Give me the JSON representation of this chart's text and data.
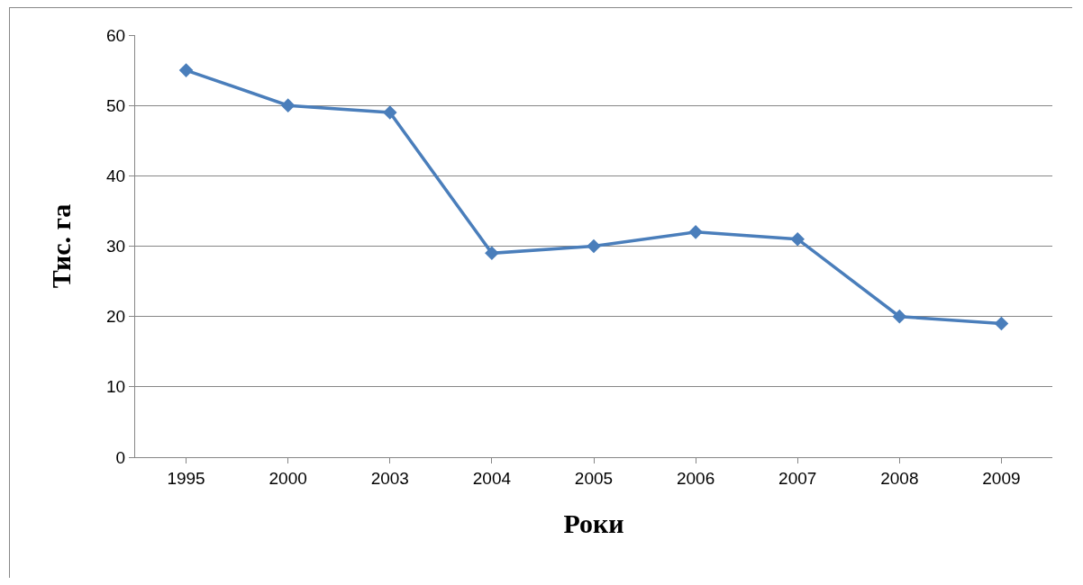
{
  "chart_data": {
    "type": "line",
    "xlabel": "Роки",
    "ylabel": "Тис. га",
    "categories": [
      "1995",
      "2000",
      "2003",
      "2004",
      "2005",
      "2006",
      "2007",
      "2008",
      "2009"
    ],
    "series": [
      {
        "color": "#4a7ebb",
        "values": [
          55,
          50,
          49,
          29,
          30,
          32,
          31,
          20,
          19
        ]
      }
    ],
    "ylim": [
      0,
      60
    ],
    "yticks": [
      0,
      10,
      20,
      30,
      40,
      50,
      60
    ],
    "grid": "y",
    "marker": "diamond",
    "line_style": "solid"
  }
}
